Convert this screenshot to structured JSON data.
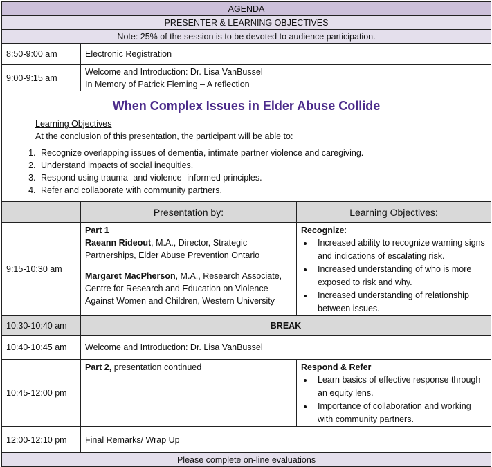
{
  "header": {
    "agenda": "AGENDA",
    "subtitle": "PRESENTER & LEARNING OBJECTIVES",
    "note": "Note: 25% of the session is to be devoted to audience participation."
  },
  "rows": [
    {
      "time": "8:50-9:00 am",
      "text": "Electronic Registration"
    },
    {
      "time": "9:00-9:15 am",
      "line1": "Welcome and Introduction: Dr. Lisa VanBussel",
      "line2": "In Memory of Patrick Fleming – A reflection"
    }
  ],
  "session": {
    "title": "When Complex Issues in Elder Abuse Collide",
    "lo_heading": "Learning Objectives",
    "intro": "At the conclusion of this presentation, the participant will be able to:",
    "objectives": [
      "Recognize overlapping issues of dementia, intimate partner violence and caregiving.",
      "Understand impacts of social inequities.",
      "Respond using trauma -and violence- informed principles.",
      "Refer and collaborate with community partners."
    ]
  },
  "columns": {
    "presentation": "Presentation by:",
    "objectives": "Learning Objectives:"
  },
  "part1": {
    "time": "9:15-10:30 am",
    "label": "Part 1",
    "p1_name": "Raeann Rideout",
    "p1_rest": ", M.A., Director, Strategic Partnerships, Elder Abuse Prevention Ontario",
    "p2_name": "Margaret MacPherson",
    "p2_rest": ", M.A., Research Associate, Centre for Research and Education on Violence Against Women and Children, Western University",
    "obj_heading": "Recognize",
    "obj_colon": ":",
    "bullets": [
      "Increased ability to recognize warning signs and indications of escalating risk.",
      "Increased understanding of who is more exposed to risk and why.",
      "Increased understanding of relationship between issues."
    ]
  },
  "break": {
    "time": "10:30-10:40 am",
    "label": "BREAK"
  },
  "welcome2": {
    "time": "10:40-10:45 am",
    "text": "Welcome and Introduction: Dr. Lisa VanBussel"
  },
  "part2": {
    "time": "10:45-12:00 pm",
    "label": "Part 2,",
    "rest": " presentation continued",
    "obj_heading": "Respond & Refer",
    "bullets": [
      "Learn basics of effective response through an equity lens.",
      "Importance of collaboration and working with community partners."
    ]
  },
  "closing": {
    "time": "12:00-12:10 pm",
    "text": "Final Remarks/ Wrap Up"
  },
  "footer": "Please complete on-line evaluations"
}
